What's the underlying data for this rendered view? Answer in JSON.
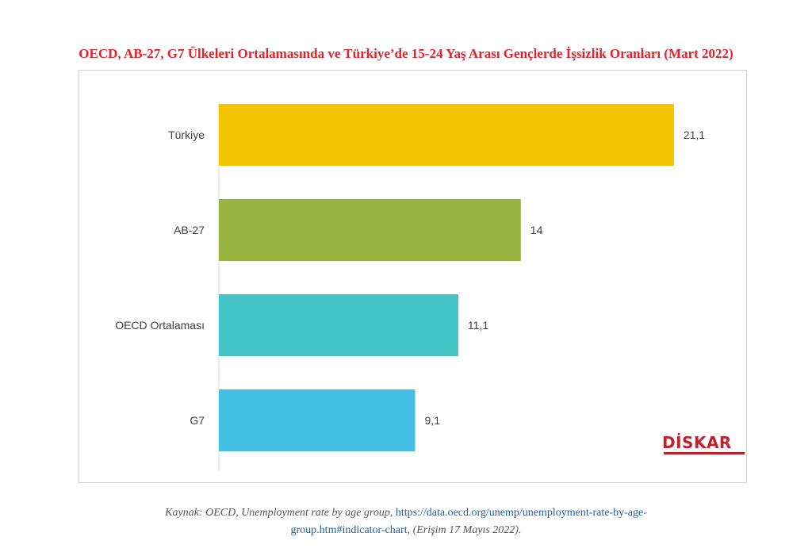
{
  "title": "OECD, AB-27, G7 Ülkeleri Ortalamasında ve Türkiye’de 15-24 Yaş Arası Gençlerde İşsizlik Oranları (Mart 2022)",
  "chart_data": {
    "type": "bar",
    "orientation": "horizontal",
    "categories": [
      "Türkiye",
      "AB-27",
      "OECD Ortalaması",
      "G7"
    ],
    "values": [
      21.1,
      14,
      11.1,
      9.1
    ],
    "value_labels": [
      "21,1",
      "14",
      "11,1",
      "9,1"
    ],
    "colors": [
      "#f5c400",
      "#98b441",
      "#43c3c3",
      "#46bfe4"
    ],
    "xlim": [
      0,
      25
    ],
    "grid": false,
    "legend": "none"
  },
  "logo": {
    "text": "DİSKAR"
  },
  "caption": {
    "prefix": "Kaynak: OECD, Unemployment rate by age group,",
    "link_part1": "https://data.oecd.org/unemp/unemployment-rate-by-age-",
    "link_part2": "group.htm#indicator-chart",
    "suffix": ", (Erişim 17 Mayıs 2022)."
  }
}
